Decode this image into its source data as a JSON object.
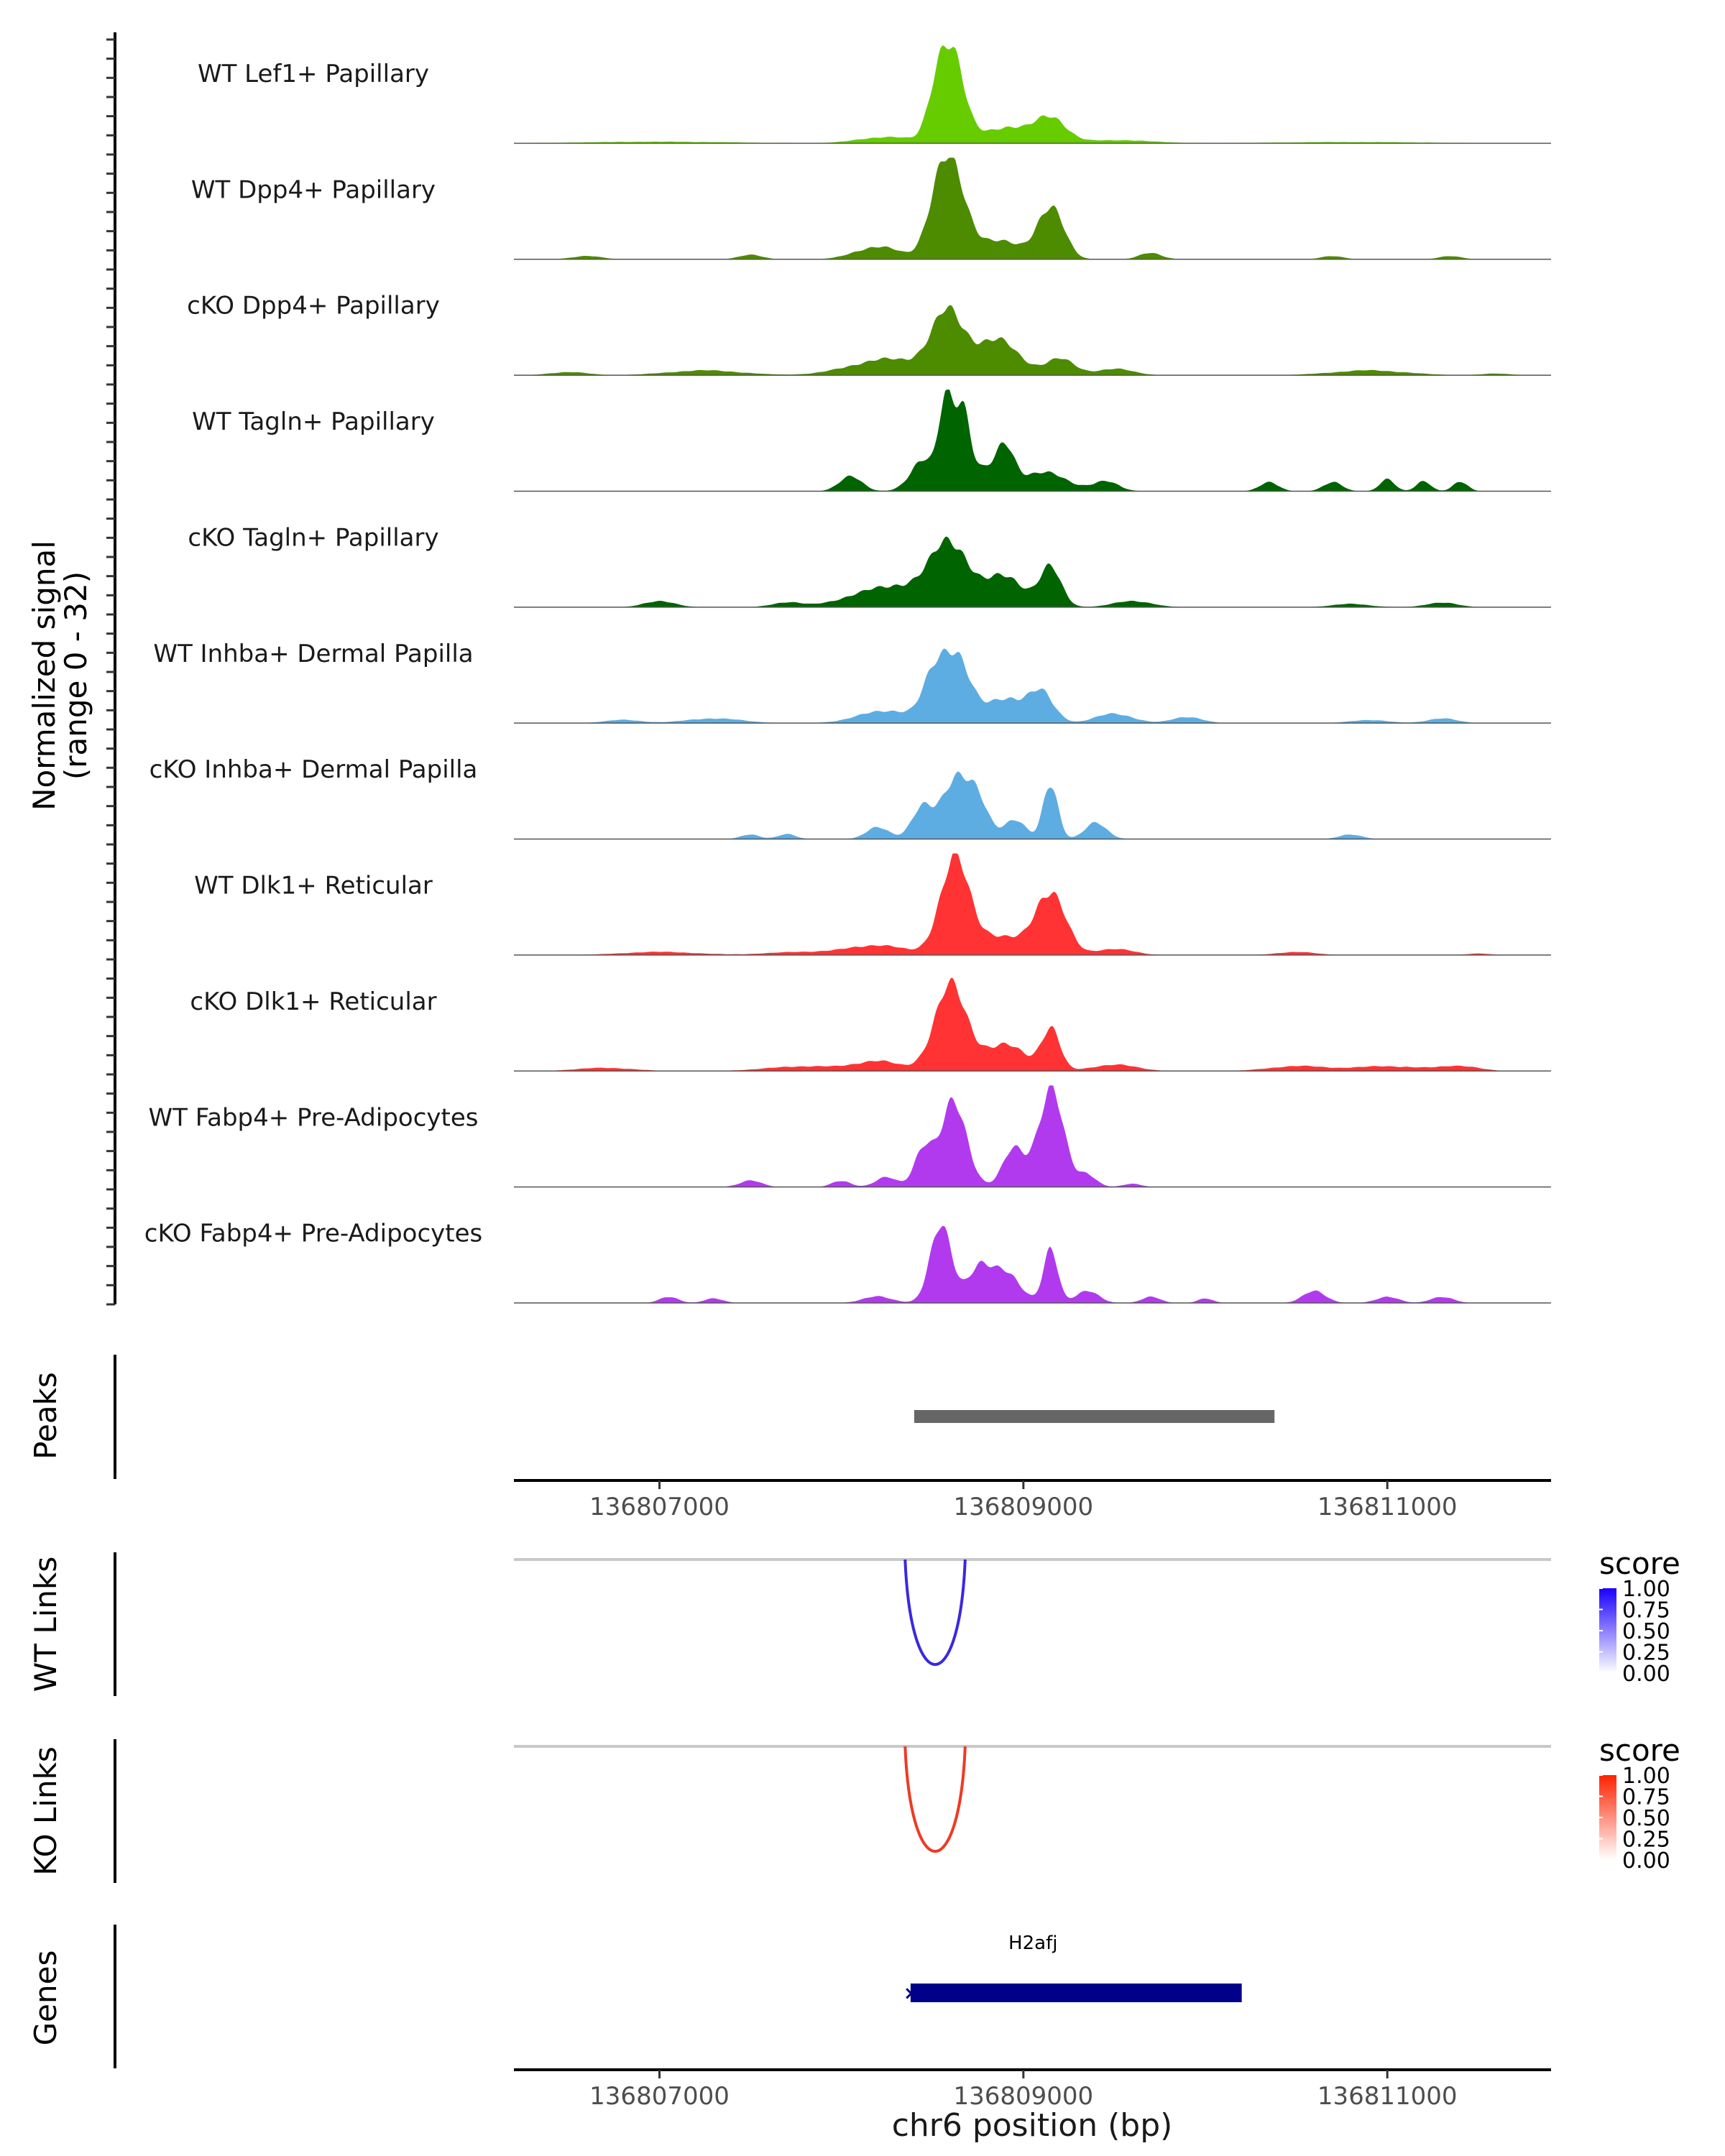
{
  "chart_data": {
    "type": "area",
    "region": "chr6",
    "xlim": [
      136806200,
      136811900
    ],
    "x_ticks": [
      136807000,
      136809000,
      136811000
    ],
    "x_tick_labels": [
      "136807000",
      "136809000",
      "136811000"
    ],
    "xlabel": "chr6 position (bp)",
    "coverage": {
      "ylabel": "Normalized signal",
      "ylabel_range": "(range 0 - 32)",
      "ylim": [
        0,
        32
      ],
      "tracks": [
        {
          "name": "WT Lef1+ Papillary",
          "color": "#66CC00",
          "bumps": [
            [
              136808600,
              70,
              28
            ],
            [
              136808520,
              50,
              10
            ],
            [
              136808900,
              130,
              5
            ],
            [
              136809150,
              80,
              8
            ],
            [
              136808250,
              150,
              2
            ],
            [
              136809500,
              200,
              1
            ],
            [
              136807000,
              400,
              0.5
            ],
            [
              136810800,
              400,
              0.4
            ]
          ]
        },
        {
          "name": "WT Dpp4+ Papillary",
          "color": "#4D8B00",
          "bumps": [
            [
              136808600,
              80,
              26
            ],
            [
              136808520,
              60,
              10
            ],
            [
              136808850,
              130,
              6
            ],
            [
              136809150,
              70,
              17
            ],
            [
              136808200,
              120,
              4
            ],
            [
              136809700,
              60,
              2
            ],
            [
              136806600,
              80,
              1
            ],
            [
              136807500,
              60,
              1.5
            ],
            [
              136810700,
              60,
              1
            ],
            [
              136811350,
              60,
              1
            ]
          ]
        },
        {
          "name": "cKO Dpp4+ Papillary",
          "color": "#4D8B00",
          "bumps": [
            [
              136808580,
              90,
              18
            ],
            [
              136808850,
              120,
              11
            ],
            [
              136808250,
              200,
              5
            ],
            [
              136809200,
              80,
              5
            ],
            [
              136809500,
              100,
              2
            ],
            [
              136806500,
              100,
              1
            ],
            [
              136807250,
              200,
              1.5
            ],
            [
              136810900,
              200,
              1.5
            ],
            [
              136811600,
              80,
              0.5
            ]
          ]
        },
        {
          "name": "WT Tagln+ Papillary",
          "color": "#006400",
          "bumps": [
            [
              136808660,
              45,
              28
            ],
            [
              136808570,
              35,
              24
            ],
            [
              136808450,
              70,
              10
            ],
            [
              136808900,
              50,
              12
            ],
            [
              136808780,
              60,
              6
            ],
            [
              136809100,
              130,
              6
            ],
            [
              136808050,
              60,
              5
            ],
            [
              136809450,
              70,
              3
            ],
            [
              136810350,
              50,
              3
            ],
            [
              136810700,
              50,
              3
            ],
            [
              136811000,
              40,
              4
            ],
            [
              136811200,
              40,
              3
            ],
            [
              136811400,
              40,
              3
            ]
          ]
        },
        {
          "name": "cKO Tagln+ Papillary",
          "color": "#006400",
          "bumps": [
            [
              136808600,
              100,
              20
            ],
            [
              136808350,
              150,
              6
            ],
            [
              136808900,
              100,
              10
            ],
            [
              136809150,
              60,
              12
            ],
            [
              136808100,
              150,
              3
            ],
            [
              136809600,
              100,
              2
            ],
            [
              136807000,
              80,
              2
            ],
            [
              136807700,
              80,
              1.5
            ],
            [
              136810800,
              100,
              1
            ],
            [
              136811300,
              80,
              1.5
            ]
          ]
        },
        {
          "name": "WT Inhba+ Dermal Papilla",
          "color": "#5DADE2",
          "bumps": [
            [
              136808620,
              80,
              22
            ],
            [
              136808500,
              60,
              10
            ],
            [
              136808900,
              100,
              8
            ],
            [
              136809100,
              70,
              9
            ],
            [
              136808250,
              150,
              4
            ],
            [
              136809500,
              100,
              3
            ],
            [
              136807300,
              150,
              1.5
            ],
            [
              136806800,
              100,
              1
            ],
            [
              136809900,
              80,
              2
            ],
            [
              136810900,
              100,
              1
            ],
            [
              136811300,
              80,
              1.5
            ]
          ]
        },
        {
          "name": "cKO Inhba+ Dermal Papilla",
          "color": "#5DADE2",
          "bumps": [
            [
              136808620,
              70,
              18
            ],
            [
              136808450,
              60,
              10
            ],
            [
              136808750,
              60,
              12
            ],
            [
              136808950,
              60,
              6
            ],
            [
              136809150,
              40,
              18
            ],
            [
              136809400,
              60,
              5
            ],
            [
              136808200,
              60,
              4
            ],
            [
              136807500,
              50,
              1.5
            ],
            [
              136807700,
              50,
              1.5
            ],
            [
              136810800,
              60,
              1.5
            ]
          ]
        },
        {
          "name": "WT Dlk1+ Reticular",
          "color": "#FF3333",
          "bumps": [
            [
              136808620,
              80,
              28
            ],
            [
              136808850,
              150,
              6
            ],
            [
              136809150,
              80,
              20
            ],
            [
              136808200,
              150,
              3
            ],
            [
              136809500,
              100,
              2
            ],
            [
              136807000,
              200,
              1
            ],
            [
              136807800,
              200,
              1
            ],
            [
              136810500,
              100,
              1
            ],
            [
              136811500,
              60,
              0.5
            ]
          ]
        },
        {
          "name": "cKO Dlk1+ Reticular",
          "color": "#FF3333",
          "bumps": [
            [
              136808600,
              90,
              26
            ],
            [
              136808900,
              120,
              8
            ],
            [
              136809150,
              50,
              13
            ],
            [
              136808200,
              120,
              3
            ],
            [
              136809500,
              120,
              2
            ],
            [
              136806700,
              150,
              1
            ],
            [
              136807800,
              200,
              1.5
            ],
            [
              136810500,
              150,
              1.5
            ],
            [
              136811000,
              200,
              1.5
            ],
            [
              136811400,
              100,
              1.5
            ]
          ]
        },
        {
          "name": "WT Fabp4+ Pre-Adipocytes",
          "color": "#B23AEE",
          "bumps": [
            [
              136808620,
              70,
              27
            ],
            [
              136808450,
              50,
              12
            ],
            [
              136808950,
              60,
              12
            ],
            [
              136809150,
              70,
              30
            ],
            [
              136809350,
              50,
              4
            ],
            [
              136807500,
              60,
              2
            ],
            [
              136808000,
              50,
              2
            ],
            [
              136808250,
              60,
              3
            ],
            [
              136809600,
              50,
              1
            ]
          ]
        },
        {
          "name": "cKO Fabp4+ Pre-Adipocytes",
          "color": "#B23AEE",
          "bumps": [
            [
              136808550,
              60,
              24
            ],
            [
              136808750,
              60,
              10
            ],
            [
              136808900,
              80,
              10
            ],
            [
              136809150,
              40,
              16
            ],
            [
              136809350,
              60,
              4
            ],
            [
              136808200,
              80,
              2
            ],
            [
              136807050,
              50,
              2
            ],
            [
              136807300,
              50,
              1.5
            ],
            [
              136809700,
              50,
              2
            ],
            [
              136810000,
              40,
              1.5
            ],
            [
              136810600,
              60,
              4
            ],
            [
              136811000,
              60,
              2
            ],
            [
              136811300,
              60,
              2
            ]
          ]
        }
      ]
    },
    "peaks": {
      "label": "Peaks",
      "color": "#666666",
      "regions": [
        [
          136808400,
          136810380
        ]
      ]
    },
    "links": [
      {
        "label": "WT Links",
        "color": "#3B28E0",
        "legend_title": "score",
        "legend_low": "#FFFFFF",
        "legend_high": "#1A00FF",
        "start": 136808350,
        "end": 136808680,
        "score": 0.95,
        "legend_ticks": [
          "1.00",
          "0.75",
          "0.50",
          "0.25",
          "0.00"
        ]
      },
      {
        "label": "KO Links",
        "color": "#EE3A24",
        "legend_title": "score",
        "legend_low": "#FFFFFF",
        "legend_high": "#FF2200",
        "start": 136808350,
        "end": 136808680,
        "score": 0.95,
        "legend_ticks": [
          "1.00",
          "0.75",
          "0.50",
          "0.25",
          "0.00"
        ]
      }
    ],
    "genes": {
      "label": "Genes",
      "items": [
        {
          "name": "H2afj",
          "start": 136808380,
          "end": 136810200,
          "color": "#00008B"
        }
      ]
    }
  }
}
